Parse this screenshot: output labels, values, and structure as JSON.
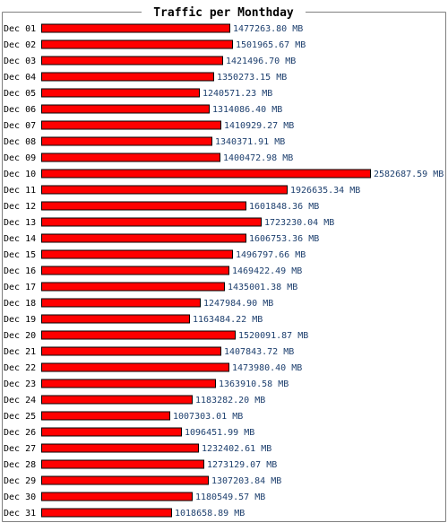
{
  "chart_data": {
    "type": "bar",
    "orientation": "horizontal",
    "title": "Traffic per Monthday",
    "unit": "MB",
    "categories": [
      "Dec 01",
      "Dec 02",
      "Dec 03",
      "Dec 04",
      "Dec 05",
      "Dec 06",
      "Dec 07",
      "Dec 08",
      "Dec 09",
      "Dec 10",
      "Dec 11",
      "Dec 12",
      "Dec 13",
      "Dec 14",
      "Dec 15",
      "Dec 16",
      "Dec 17",
      "Dec 18",
      "Dec 19",
      "Dec 20",
      "Dec 21",
      "Dec 22",
      "Dec 23",
      "Dec 24",
      "Dec 25",
      "Dec 26",
      "Dec 27",
      "Dec 28",
      "Dec 29",
      "Dec 30",
      "Dec 31"
    ],
    "values": [
      1477263.8,
      1501965.67,
      1421496.7,
      1350273.15,
      1240571.23,
      1314086.4,
      1410929.27,
      1340371.91,
      1400472.98,
      2582687.59,
      1926635.34,
      1601848.36,
      1723230.04,
      1606753.36,
      1496797.66,
      1469422.49,
      1435001.38,
      1247984.9,
      1163484.22,
      1520091.87,
      1407843.72,
      1473980.4,
      1363910.58,
      1183282.2,
      1007303.01,
      1096451.99,
      1232402.61,
      1273129.07,
      1307203.84,
      1180549.57,
      1018658.89
    ],
    "labels": [
      "1477263.80 MB",
      "1501965.67 MB",
      "1421496.70 MB",
      "1350273.15 MB",
      "1240571.23 MB",
      "1314086.40 MB",
      "1410929.27 MB",
      "1340371.91 MB",
      "1400472.98 MB",
      "2582687.59 MB",
      "1926635.34 MB",
      "1601848.36 MB",
      "1723230.04 MB",
      "1606753.36 MB",
      "1496797.66 MB",
      "1469422.49 MB",
      "1435001.38 MB",
      "1247984.90 MB",
      "1163484.22 MB",
      "1520091.87 MB",
      "1407843.72 MB",
      "1473980.40 MB",
      "1363910.58 MB",
      "1183282.20 MB",
      "1007303.01 MB",
      "1096451.99 MB",
      "1232402.61 MB",
      "1273129.07 MB",
      "1307203.84 MB",
      "1180549.57 MB",
      "1018658.89 MB"
    ],
    "grid": false,
    "colors": {
      "bar": "#ff0000",
      "bar_outline": "#000000",
      "value_text": "#1d3f6e",
      "frame": "#808080"
    }
  }
}
